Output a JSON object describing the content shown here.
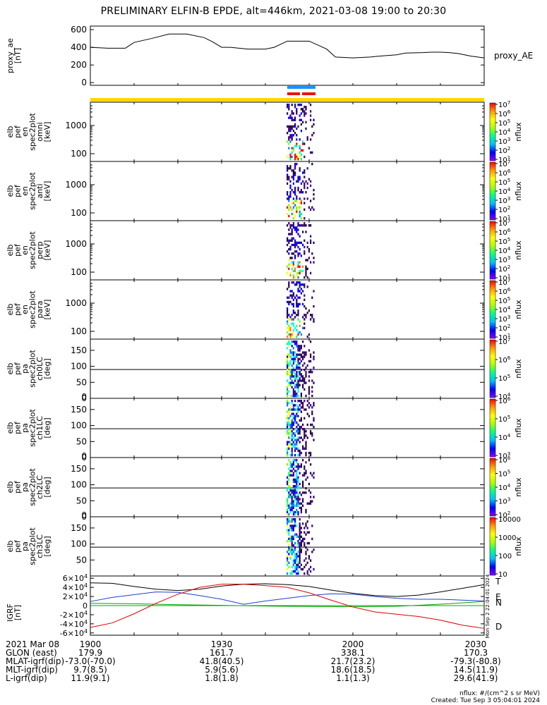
{
  "title": "PRELIMINARY ELFIN-B EPDE, alt=446km, 2021-03-08 19:00 to 20:30",
  "chart_data": [
    {
      "type": "line",
      "panel": "proxy_ae",
      "ylabel": [
        "proxy_ae",
        "[nT]"
      ],
      "legend": "proxy_AE",
      "yticks": [
        "0",
        "200",
        "400",
        "600"
      ],
      "ylim": [
        -30,
        640
      ],
      "x_minutes": [
        0,
        4,
        8,
        10,
        14,
        18,
        20,
        22,
        26,
        28,
        30,
        32,
        34,
        36,
        40,
        42,
        45,
        50,
        54,
        56,
        60,
        62,
        64,
        66,
        70,
        72,
        76,
        78,
        80,
        82,
        84,
        87,
        90
      ],
      "values": [
        400,
        390,
        390,
        455,
        500,
        550,
        550,
        550,
        510,
        460,
        400,
        400,
        390,
        380,
        380,
        400,
        470,
        470,
        380,
        290,
        280,
        285,
        290,
        300,
        315,
        335,
        340,
        345,
        345,
        340,
        330,
        300,
        280
      ]
    },
    {
      "type": "heatmap",
      "panel": "spec_omni",
      "ylabel": [
        "elb",
        "pef",
        "en",
        "spec2plot",
        "omni",
        "[keV]"
      ],
      "yticks": [
        "100",
        "1000"
      ],
      "yscale": "log",
      "colorbar": {
        "label": "nflux",
        "ticks": [
          "10^1",
          "10^2",
          "10^3",
          "10^4",
          "10^5",
          "10^6",
          "10^7"
        ]
      }
    },
    {
      "type": "heatmap",
      "panel": "spec_anti",
      "ylabel": [
        "elb",
        "pef",
        "en",
        "spec2plot",
        "anti",
        "[keV]"
      ],
      "yticks": [
        "100",
        "1000"
      ],
      "yscale": "log",
      "colorbar": {
        "label": "nflux",
        "ticks": [
          "10^1",
          "10^2",
          "10^3",
          "10^4",
          "10^5",
          "10^6",
          "10^7"
        ]
      }
    },
    {
      "type": "heatmap",
      "panel": "spec_perp",
      "ylabel": [
        "elb",
        "pef",
        "en",
        "spec2plot",
        "perp",
        "[keV]"
      ],
      "yticks": [
        "100",
        "1000"
      ],
      "yscale": "log",
      "colorbar": {
        "label": "nflux",
        "ticks": [
          "10^1",
          "10^2",
          "10^3",
          "10^4",
          "10^5",
          "10^6",
          "10^7"
        ]
      }
    },
    {
      "type": "heatmap",
      "panel": "spec_para",
      "ylabel": [
        "elb",
        "pef",
        "en",
        "spec2plot",
        "para",
        "[keV]"
      ],
      "yticks": [
        "100",
        "1000"
      ],
      "yscale": "log",
      "colorbar": {
        "label": "nflux",
        "ticks": [
          "10^1",
          "10^2",
          "10^3",
          "10^4",
          "10^5",
          "10^6",
          "10^7"
        ]
      }
    },
    {
      "type": "heatmap",
      "panel": "pa_ch0",
      "ylabel": [
        "elb",
        "pef",
        "pa",
        "spec2plot",
        "ch0LC",
        "[deg]"
      ],
      "yticks": [
        "0",
        "50",
        "100",
        "150"
      ],
      "ylim": [
        0,
        185
      ],
      "colorbar": {
        "label": "nflux",
        "ticks": [
          "10^4",
          "10^5",
          "10^6",
          "10^7"
        ]
      }
    },
    {
      "type": "heatmap",
      "panel": "pa_ch1",
      "ylabel": [
        "elb",
        "pef",
        "pa",
        "spec2plot",
        "ch1LC",
        "[deg]"
      ],
      "yticks": [
        "0",
        "50",
        "100",
        "150"
      ],
      "ylim": [
        0,
        185
      ],
      "colorbar": {
        "label": "nflux",
        "ticks": [
          "10^3",
          "10^4",
          "10^5",
          "10^6"
        ]
      }
    },
    {
      "type": "heatmap",
      "panel": "pa_ch2",
      "ylabel": [
        "elb",
        "pef",
        "pa",
        "spec2plot",
        "ch2LC",
        "[deg]"
      ],
      "yticks": [
        "0",
        "50",
        "100",
        "150"
      ],
      "ylim": [
        0,
        185
      ],
      "colorbar": {
        "label": "nflux",
        "ticks": [
          "10^2",
          "10^3",
          "10^4",
          "10^5",
          "10^6"
        ]
      }
    },
    {
      "type": "heatmap",
      "panel": "pa_ch3",
      "ylabel": [
        "elb",
        "pef",
        "pa",
        "spec2plot",
        "ch3LC",
        "[deg]"
      ],
      "yticks": [
        "50",
        "100",
        "150"
      ],
      "ylim": [
        0,
        185
      ],
      "colorbar": {
        "label": "nflux",
        "ticks": [
          "10",
          "100",
          "1000",
          "10000"
        ]
      }
    },
    {
      "type": "line",
      "panel": "igrf",
      "ylabel": [
        "IGRF",
        "[nT]"
      ],
      "yticks": [
        "-6×10^4",
        "-4×10^4",
        "-2×10^4",
        "0",
        "2×10^4",
        "4×10^4",
        "6×10^4"
      ],
      "ylim": [
        -65000,
        65000
      ],
      "side_labels": [
        "T",
        "E",
        "N",
        "D"
      ],
      "series": [
        {
          "name": "T",
          "color": "#000000",
          "x_minutes": [
            0,
            5,
            10,
            15,
            20,
            25,
            30,
            35,
            40,
            45,
            50,
            55,
            60,
            65,
            70,
            75,
            80,
            85,
            90
          ],
          "values": [
            50000,
            49000,
            42000,
            36000,
            33000,
            36000,
            43000,
            47000,
            48000,
            46000,
            42000,
            34000,
            27000,
            22000,
            20000,
            23000,
            30000,
            38000,
            46000
          ]
        },
        {
          "name": "E",
          "color": "#00aa00",
          "x_minutes": [
            0,
            10,
            20,
            30,
            40,
            50,
            60,
            70,
            80,
            90
          ],
          "values": [
            5000,
            4000,
            2000,
            500,
            -1000,
            -2000,
            -2500,
            -1500,
            3000,
            9000
          ]
        },
        {
          "name": "N",
          "color": "#1f3fcf",
          "x_minutes": [
            0,
            5,
            10,
            15,
            20,
            25,
            30,
            35,
            40,
            45,
            50,
            55,
            60,
            65,
            70,
            75,
            80,
            85,
            90
          ],
          "values": [
            9000,
            18000,
            24000,
            30000,
            29000,
            22000,
            14000,
            3000,
            10000,
            16000,
            22000,
            26000,
            25000,
            20000,
            16000,
            14000,
            14000,
            12000,
            10000
          ]
        },
        {
          "name": "D",
          "color": "#dd0000",
          "x_minutes": [
            0,
            5,
            10,
            15,
            20,
            25,
            30,
            35,
            40,
            45,
            50,
            55,
            60,
            65,
            70,
            75,
            80,
            85,
            90
          ],
          "values": [
            -48000,
            -38000,
            -18000,
            5000,
            25000,
            40000,
            47000,
            47000,
            44000,
            40000,
            28000,
            12000,
            -3000,
            -14000,
            -19000,
            -24000,
            -32000,
            -43000,
            -50000
          ]
        }
      ]
    }
  ],
  "x_axis": {
    "ticks": [
      "1900",
      "1930",
      "2000",
      "2030"
    ],
    "rows": [
      {
        "label": "2021 Mar 08",
        "values": [
          "1900",
          "1930",
          "2000",
          "2030"
        ]
      },
      {
        "label": "GLON (east)",
        "values": [
          "179.9",
          "161.7",
          "338.1",
          "170.3"
        ]
      },
      {
        "label": "MLAT-igrf(dip)",
        "values": [
          "-73.0(-70.0)",
          "41.8(40.5)",
          "21.7(23.2)",
          "-79.3(-80.8)"
        ]
      },
      {
        "label": "MLT-igrf(dip)",
        "values": [
          "9.7(8.5)",
          "5.9(5.6)",
          "18.6(18.5)",
          "14.5(11.9)"
        ]
      },
      {
        "label": "L-igrf(dip)",
        "values": [
          "11.9(9.1)",
          "1.8(1.8)",
          "1.1(1.3)",
          "29.6(41.9)"
        ]
      }
    ]
  },
  "units_note": "nflux: #/(cm^2 s sr MeV)",
  "created_note": "Created: Tue Sep  3 05:04:01 2024",
  "side_stamp": "Mon Sep  2 22:04:01 2024",
  "colors": {
    "state_bar": "#ffd700",
    "sci_bar_blue": "#1e90ff",
    "sci_bar_red": "#ee1111"
  }
}
